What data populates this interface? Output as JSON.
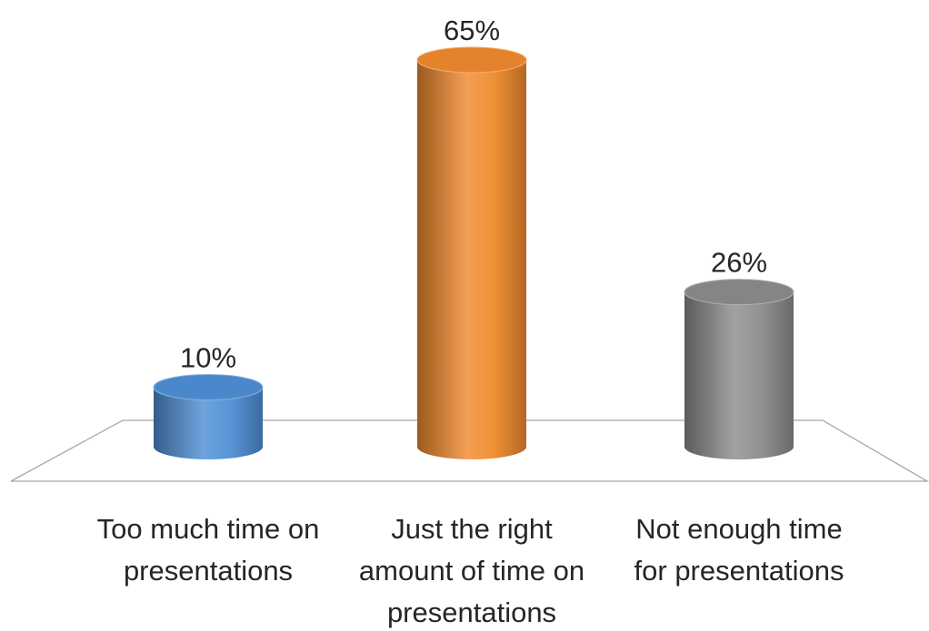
{
  "chart_data": {
    "type": "bar",
    "style": "3d-cylinder",
    "categories": [
      [
        "Too much time on",
        "presentations"
      ],
      [
        "Just the right",
        "amount of time on",
        "presentations"
      ],
      [
        "Not enough time",
        "for presentations"
      ]
    ],
    "series": [
      {
        "values": [
          10,
          65,
          26
        ],
        "value_labels": [
          "10%",
          "65%",
          "26%"
        ],
        "colors": [
          "#4f8fd6",
          "#f08a2e",
          "#8c8c8c"
        ]
      }
    ],
    "xlabel": "",
    "ylabel": "",
    "ylim": [
      0,
      65
    ],
    "grid": false,
    "legend": "none"
  }
}
